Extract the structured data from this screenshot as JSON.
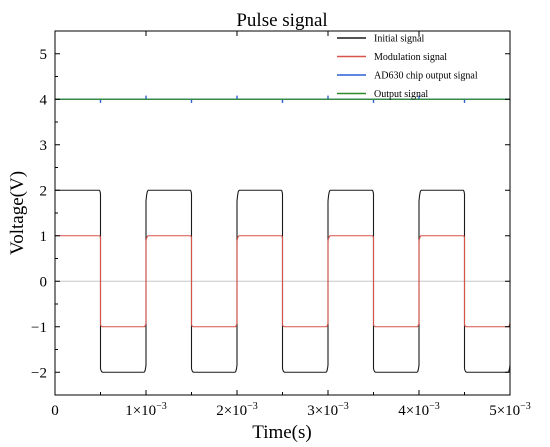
{
  "chart_data": {
    "type": "line",
    "title": "Pulse signal",
    "xlabel": "Time(s)",
    "ylabel": "Voltage(V)",
    "xlim": [
      0,
      0.005
    ],
    "ylim": [
      -2.5,
      5.5
    ],
    "grid": false,
    "legend_position": "top-right",
    "x_ticks": [
      {
        "value": 0,
        "label": "0",
        "exp": ""
      },
      {
        "value": 0.001,
        "label": "1×10",
        "exp": "−3"
      },
      {
        "value": 0.002,
        "label": "2×10",
        "exp": "−3"
      },
      {
        "value": 0.003,
        "label": "3×10",
        "exp": "−3"
      },
      {
        "value": 0.004,
        "label": "4×10",
        "exp": "−3"
      },
      {
        "value": 0.005,
        "label": "5×10",
        "exp": "−3"
      }
    ],
    "y_ticks": [
      {
        "value": -2,
        "label": "−2"
      },
      {
        "value": -1,
        "label": "−1"
      },
      {
        "value": 0,
        "label": "0"
      },
      {
        "value": 1,
        "label": "1"
      },
      {
        "value": 2,
        "label": "2"
      },
      {
        "value": 3,
        "label": "3"
      },
      {
        "value": 4,
        "label": "4"
      },
      {
        "value": 5,
        "label": "5"
      }
    ],
    "zero_line": true,
    "series": [
      {
        "name": "Initial signal",
        "color": "#1a1a1a",
        "high": 2,
        "low": -2,
        "period": 0.001,
        "edge_time": 3e-05,
        "x": [
          0,
          0.0005,
          0.0005,
          0.001,
          0.001,
          0.0015,
          0.0015,
          0.002,
          0.002,
          0.0025,
          0.0025,
          0.003,
          0.003,
          0.0035,
          0.0035,
          0.004,
          0.004,
          0.0045,
          0.0045,
          0.005
        ],
        "y": [
          2,
          2,
          -2,
          -2,
          2,
          2,
          -2,
          -2,
          2,
          2,
          -2,
          -2,
          2,
          2,
          -2,
          -2,
          2,
          2,
          -2,
          -2
        ]
      },
      {
        "name": "Modulation signal",
        "color": "#d9534a",
        "high": 1,
        "low": -1,
        "period": 0.001,
        "edge_time": 3e-05,
        "x": [
          0,
          0.0005,
          0.0005,
          0.001,
          0.001,
          0.0015,
          0.0015,
          0.002,
          0.002,
          0.0025,
          0.0025,
          0.003,
          0.003,
          0.0035,
          0.0035,
          0.004,
          0.004,
          0.0045,
          0.0045,
          0.005
        ],
        "y": [
          1,
          1,
          -1,
          -1,
          1,
          1,
          -1,
          -1,
          1,
          1,
          -1,
          -1,
          1,
          1,
          -1,
          -1,
          1,
          1,
          -1,
          -1
        ]
      },
      {
        "name": "AD630 chip output signal",
        "color": "#2a5fd6",
        "level": 4,
        "spikes": [
          {
            "x": 0.0005,
            "dy": -0.08
          },
          {
            "x": 0.001,
            "dy": 0.08
          },
          {
            "x": 0.0015,
            "dy": -0.08
          },
          {
            "x": 0.002,
            "dy": 0.08
          },
          {
            "x": 0.0025,
            "dy": -0.08
          },
          {
            "x": 0.003,
            "dy": 0.08
          },
          {
            "x": 0.0035,
            "dy": -0.08
          },
          {
            "x": 0.004,
            "dy": 0.08
          },
          {
            "x": 0.0045,
            "dy": -0.08
          }
        ]
      },
      {
        "name": "Output signal",
        "color": "#2e8b2e",
        "x": [
          0,
          0.005
        ],
        "y": [
          4,
          4
        ]
      }
    ]
  }
}
